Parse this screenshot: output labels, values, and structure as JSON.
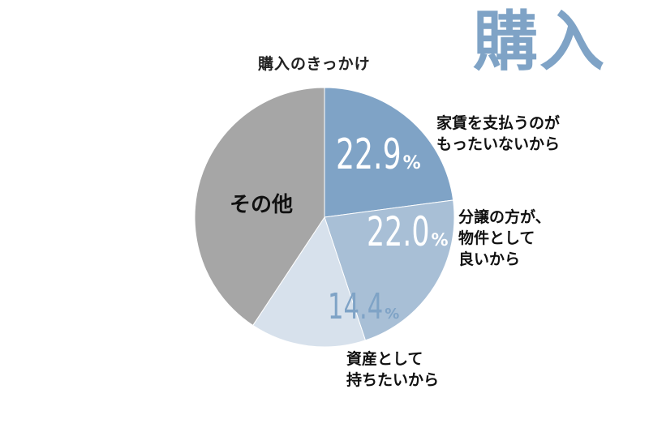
{
  "header": {
    "big_title": "購入"
  },
  "chart_data": {
    "type": "pie",
    "title": "購入のきっかけ",
    "slices": [
      {
        "category": [
          "家賃を支払うのが",
          "もったいないから"
        ],
        "value": 22.9,
        "label": "22.9",
        "unit": "%",
        "color": "#7fa3c6",
        "value_color": "#ffffff"
      },
      {
        "category": [
          "分譲の方が、",
          "物件として",
          "良いから"
        ],
        "value": 22.0,
        "label": "22.0",
        "unit": "%",
        "color": "#a8bfd6",
        "value_color": "#ffffff"
      },
      {
        "category": [
          "資産として",
          "持ちたいから"
        ],
        "value": 14.4,
        "label": "14.4",
        "unit": "%",
        "color": "#d7e1ec",
        "value_color": "#7fa3c6"
      },
      {
        "category": [
          "その他"
        ],
        "value": 40.7,
        "label": "",
        "unit": "",
        "color": "#a6a6a6",
        "value_color": "#111111"
      }
    ]
  }
}
